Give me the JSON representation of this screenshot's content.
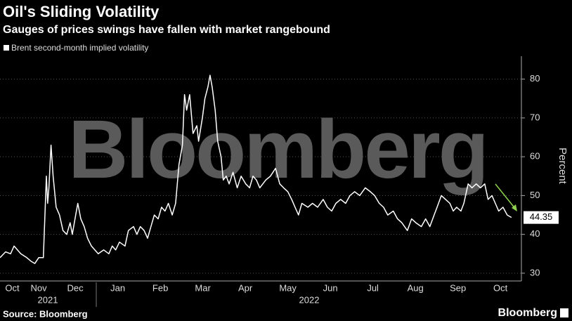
{
  "chart_data": {
    "type": "line",
    "title": "Oil's Sliding Volatility",
    "subtitle": "Gauges of prices swings have fallen with market rangebound",
    "y_label": "Percent",
    "watermark": "Bloomberg",
    "source": "Source: Bloomberg",
    "logo": "Bloomberg",
    "years": [
      "2021",
      "2022"
    ],
    "xlim": [
      0.73,
      12.96
    ],
    "xticks": [
      {
        "value": 1.02,
        "label": "Oct"
      },
      {
        "value": 1.64,
        "label": "Nov"
      },
      {
        "value": 2.5,
        "label": "Dec"
      },
      {
        "value": 3.5,
        "label": "Jan"
      },
      {
        "value": 4.5,
        "label": "Feb"
      },
      {
        "value": 5.5,
        "label": "Mar"
      },
      {
        "value": 6.5,
        "label": "Apr"
      },
      {
        "value": 7.5,
        "label": "May"
      },
      {
        "value": 8.5,
        "label": "Jun"
      },
      {
        "value": 9.5,
        "label": "Jul"
      },
      {
        "value": 10.5,
        "label": "Aug"
      },
      {
        "value": 11.5,
        "label": "Sep"
      },
      {
        "value": 12.5,
        "label": "Oct"
      }
    ],
    "ylim": [
      28,
      85
    ],
    "yticks": [
      30,
      40,
      50,
      60,
      70,
      80
    ],
    "grid": true,
    "series": [
      {
        "name": "Brent second-month implied volatility",
        "color": "#ffffff",
        "x": [
          0.73,
          0.86,
          0.98,
          1.06,
          1.14,
          1.22,
          1.36,
          1.47,
          1.55,
          1.64,
          1.75,
          1.82,
          1.85,
          1.88,
          1.93,
          1.98,
          2.05,
          2.13,
          2.21,
          2.3,
          2.38,
          2.43,
          2.51,
          2.56,
          2.63,
          2.71,
          2.79,
          2.88,
          2.96,
          3.04,
          3.17,
          3.29,
          3.37,
          3.45,
          3.54,
          3.67,
          3.75,
          3.87,
          3.95,
          4.03,
          4.12,
          4.2,
          4.28,
          4.36,
          4.45,
          4.53,
          4.61,
          4.69,
          4.78,
          4.86,
          4.94,
          5.02,
          5.07,
          5.12,
          5.19,
          5.27,
          5.36,
          5.4,
          5.49,
          5.55,
          5.62,
          5.67,
          5.72,
          5.79,
          5.85,
          5.93,
          5.98,
          6.05,
          6.12,
          6.21,
          6.31,
          6.4,
          6.51,
          6.6,
          6.68,
          6.76,
          6.84,
          6.98,
          7.09,
          7.21,
          7.31,
          7.4,
          7.5,
          7.59,
          7.67,
          7.75,
          7.83,
          7.97,
          8.08,
          8.2,
          8.33,
          8.43,
          8.53,
          8.63,
          8.74,
          8.86,
          8.96,
          9.07,
          9.19,
          9.32,
          9.44,
          9.54,
          9.65,
          9.75,
          9.85,
          9.98,
          10.08,
          10.18,
          10.31,
          10.41,
          10.51,
          10.64,
          10.74,
          10.84,
          10.94,
          11.01,
          11.11,
          11.21,
          11.31,
          11.39,
          11.47,
          11.57,
          11.64,
          11.74,
          11.83,
          11.93,
          12.03,
          12.13,
          12.21,
          12.3,
          12.38,
          12.46,
          12.56,
          12.66,
          12.76
        ],
        "values": [
          34,
          35.5,
          35,
          37,
          36,
          35,
          34,
          33,
          32.5,
          34,
          34,
          55,
          48,
          52,
          63,
          55,
          47,
          45,
          41,
          40,
          43,
          40,
          45,
          48,
          44,
          42,
          39,
          37,
          36,
          35,
          36,
          35,
          37,
          36,
          38,
          37,
          41,
          42,
          40,
          42,
          41,
          39,
          42,
          45,
          44,
          47,
          46,
          48,
          45,
          48,
          58,
          63,
          76,
          72,
          76,
          66,
          68,
          64,
          70,
          75,
          78,
          81,
          78,
          72,
          64,
          60,
          54,
          55,
          53,
          56,
          52,
          55,
          53,
          52,
          55,
          54,
          52,
          54,
          55,
          57,
          53,
          52,
          51,
          49,
          47,
          45,
          48,
          47,
          48,
          47,
          49,
          47,
          46,
          48,
          49,
          48,
          50,
          51,
          50,
          52,
          51,
          50,
          48,
          47,
          45,
          46,
          44,
          43,
          41,
          44,
          43,
          42,
          44,
          42,
          45,
          47,
          50,
          49,
          48,
          46,
          47,
          46,
          48,
          53,
          52,
          53,
          52,
          53,
          49,
          50,
          48,
          46,
          47,
          45,
          44.35
        ]
      }
    ]
  }
}
